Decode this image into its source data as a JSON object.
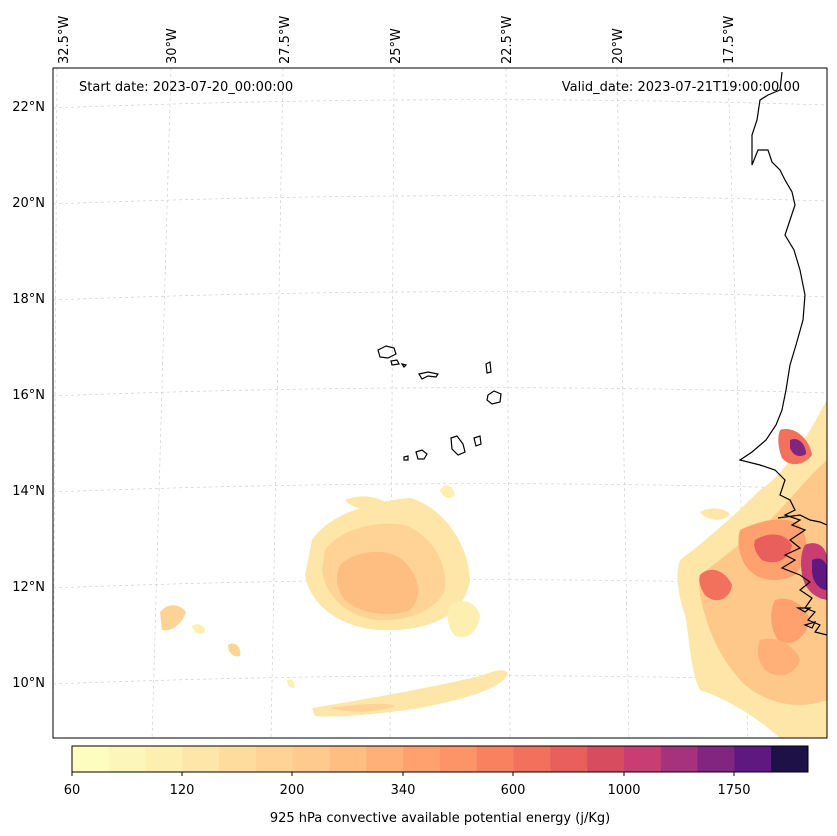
{
  "header": {
    "start_date": "Start date: 2023-07-20_00:00:00",
    "valid_date": "Valid_date: 2023-07-21T19:00:00.00"
  },
  "lon_labels": [
    "32.5°W",
    "30°W",
    "27.5°W",
    "25°W",
    "22.5°W",
    "20°W",
    "17.5°W"
  ],
  "lat_labels": [
    "22°N",
    "20°N",
    "18°N",
    "16°N",
    "14°N",
    "12°N",
    "10°N"
  ],
  "colorbar": {
    "label": "925 hPa convective available potential energy (j/Kg)",
    "tick_labels": [
      "60",
      "120",
      "200",
      "340",
      "600",
      "1000",
      "1750"
    ],
    "colors": [
      "#fcfdbf",
      "#fcf7b9",
      "#fcefb0",
      "#fde6a7",
      "#fedc9e",
      "#fed395",
      "#feca8d",
      "#febe82",
      "#feb078",
      "#fea16e",
      "#fd9467",
      "#f98160",
      "#f1715c",
      "#e85f5c",
      "#d84c5f",
      "#c83e73",
      "#a6317d",
      "#812581",
      "#5f187f",
      "#1d1147"
    ]
  }
}
